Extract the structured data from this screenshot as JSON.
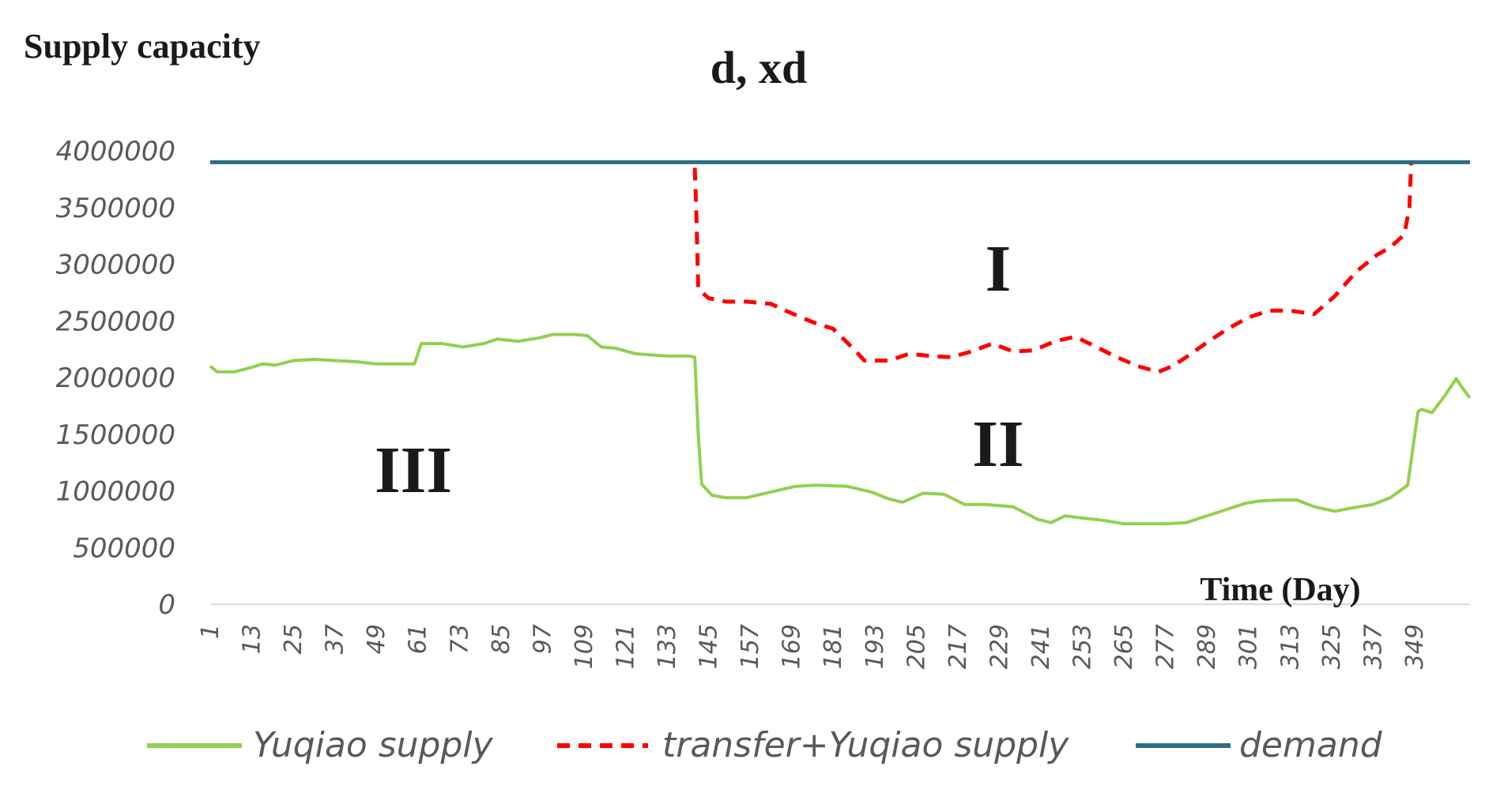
{
  "chart_data": {
    "type": "line",
    "title": "d, xd",
    "ylabel": "Supply capacity",
    "xlabel": "Time (Day)",
    "ylim": [
      0,
      4000000
    ],
    "y_ticks": [
      "4000000",
      "3500000",
      "3000000",
      "2500000",
      "2000000",
      "1500000",
      "1000000",
      "500000",
      "0"
    ],
    "y_tick_values": [
      4000000,
      3500000,
      3000000,
      2500000,
      2000000,
      1500000,
      1000000,
      500000,
      0
    ],
    "xlim": [
      1,
      365
    ],
    "x_ticks": [
      "1",
      "13",
      "25",
      "37",
      "49",
      "61",
      "73",
      "85",
      "97",
      "109",
      "121",
      "133",
      "145",
      "157",
      "169",
      "181",
      "193",
      "205",
      "217",
      "229",
      "241",
      "253",
      "265",
      "277",
      "289",
      "301",
      "313",
      "325",
      "337",
      "349"
    ],
    "grid": false,
    "legend_position": "bottom",
    "region_labels": [
      "I",
      "II",
      "III"
    ],
    "colors": {
      "yuqiao": "#92d050",
      "transfer": "#ff0000",
      "demand": "#2e6e80"
    },
    "series": [
      {
        "name": "Yuqiao supply",
        "style": "solid",
        "x": [
          1,
          3,
          8,
          13,
          16,
          20,
          25,
          31,
          37,
          43,
          49,
          55,
          60,
          62,
          68,
          74,
          80,
          84,
          90,
          96,
          100,
          106,
          110,
          114,
          118,
          124,
          128,
          133,
          139,
          141,
          142,
          143,
          146,
          150,
          156,
          163,
          170,
          176,
          185,
          192,
          197,
          201,
          207,
          213,
          219,
          225,
          233,
          240,
          244,
          248,
          253,
          259,
          265,
          271,
          277,
          283,
          289,
          295,
          300,
          304,
          310,
          315,
          320,
          326,
          331,
          337,
          342,
          347,
          350,
          351,
          354,
          358,
          361,
          363,
          365
        ],
        "values": [
          2100000,
          2050000,
          2050000,
          2090000,
          2120000,
          2110000,
          2150000,
          2160000,
          2150000,
          2140000,
          2120000,
          2120000,
          2120000,
          2300000,
          2300000,
          2270000,
          2300000,
          2340000,
          2320000,
          2350000,
          2380000,
          2380000,
          2370000,
          2270000,
          2260000,
          2210000,
          2200000,
          2190000,
          2190000,
          2180000,
          1500000,
          1060000,
          960000,
          940000,
          940000,
          990000,
          1040000,
          1050000,
          1040000,
          990000,
          930000,
          900000,
          980000,
          970000,
          880000,
          880000,
          860000,
          750000,
          720000,
          780000,
          760000,
          740000,
          710000,
          710000,
          710000,
          720000,
          780000,
          840000,
          890000,
          910000,
          920000,
          920000,
          860000,
          820000,
          850000,
          880000,
          940000,
          1050000,
          1700000,
          1720000,
          1690000,
          1850000,
          1990000,
          1900000,
          1820000
        ]
      },
      {
        "name": "transfer+Yuqiao supply",
        "style": "dashed",
        "x": [
          141,
          141.5,
          142,
          145,
          150,
          156,
          163,
          168,
          175,
          181,
          187,
          190,
          197,
          203,
          209,
          215,
          221,
          227,
          233,
          239,
          245,
          251,
          257,
          263,
          269,
          275,
          279,
          283,
          289,
          295,
          301,
          307,
          313,
          320,
          326,
          332,
          338,
          342,
          346,
          347.5,
          348
        ],
        "values": [
          3850000,
          3400000,
          2780000,
          2700000,
          2670000,
          2670000,
          2650000,
          2580000,
          2490000,
          2430000,
          2250000,
          2150000,
          2150000,
          2210000,
          2190000,
          2180000,
          2230000,
          2300000,
          2230000,
          2240000,
          2320000,
          2360000,
          2270000,
          2180000,
          2100000,
          2050000,
          2100000,
          2180000,
          2310000,
          2430000,
          2530000,
          2590000,
          2590000,
          2560000,
          2720000,
          2930000,
          3080000,
          3150000,
          3260000,
          3500000,
          3900000
        ]
      },
      {
        "name": "demand",
        "style": "solid",
        "x": [
          1,
          365
        ],
        "values": [
          3900000,
          3900000
        ]
      }
    ]
  }
}
